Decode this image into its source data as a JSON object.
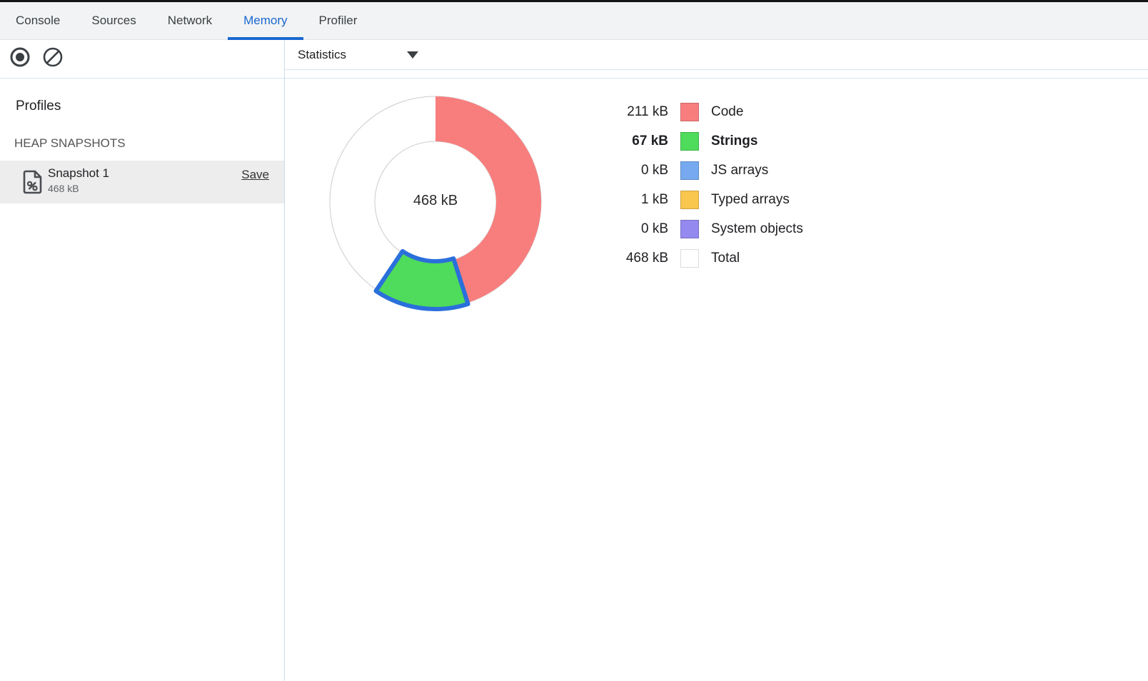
{
  "tabs": {
    "items": [
      {
        "label": "Console",
        "active": false
      },
      {
        "label": "Sources",
        "active": false
      },
      {
        "label": "Network",
        "active": false
      },
      {
        "label": "Memory",
        "active": true
      },
      {
        "label": "Profiler",
        "active": false
      }
    ]
  },
  "toolbar": {
    "record_icon": "record-icon",
    "clear_icon": "clear-icon",
    "statistics_label": "Statistics",
    "dropdown_icon": "chevron-down-icon"
  },
  "sidebar": {
    "profiles_title": "Profiles",
    "heap_section_title": "HEAP SNAPSHOTS",
    "snapshot": {
      "icon": "heap-snapshot-file-icon",
      "name": "Snapshot 1",
      "size": "468 kB",
      "save_label": "Save"
    }
  },
  "chart_data": {
    "type": "pie",
    "center_label": "468 kB",
    "total_kb": 468,
    "unit": "kB",
    "selection_color": "#2a6fdb",
    "ring_outline_color": "#cccccc",
    "slices": [
      {
        "name": "Code",
        "value_kb": 211,
        "color": "#f87e7e",
        "selected": false
      },
      {
        "name": "Strings",
        "value_kb": 67,
        "color": "#4fdb5b",
        "selected": true
      },
      {
        "name": "JS arrays",
        "value_kb": 0,
        "color": "#76a9ef",
        "selected": false
      },
      {
        "name": "Typed arrays",
        "value_kb": 1,
        "color": "#f9c64e",
        "selected": false
      },
      {
        "name": "System objects",
        "value_kb": 0,
        "color": "#9489ee",
        "selected": false
      }
    ],
    "legend_position": "right"
  },
  "legend": {
    "rows": [
      {
        "value": "211 kB",
        "label": "Code",
        "color": "#f87e7e",
        "selected": false
      },
      {
        "value": "67 kB",
        "label": "Strings",
        "color": "#4fdb5b",
        "selected": true
      },
      {
        "value": "0 kB",
        "label": "JS arrays",
        "color": "#76a9ef",
        "selected": false
      },
      {
        "value": "1 kB",
        "label": "Typed arrays",
        "color": "#f9c64e",
        "selected": false
      },
      {
        "value": "0 kB",
        "label": "System objects",
        "color": "#9489ee",
        "selected": false
      },
      {
        "value": "468 kB",
        "label": "Total",
        "color": "#ffffff",
        "selected": false
      }
    ]
  },
  "colors": {
    "accent_blue": "#1a68d1",
    "divider": "#ccd9ec",
    "selected_row_bg": "#ededed"
  }
}
